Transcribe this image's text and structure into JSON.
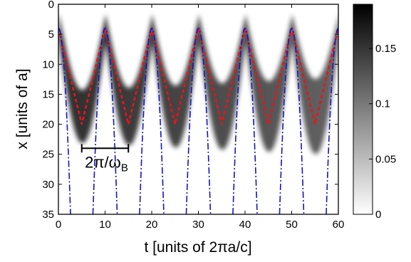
{
  "chart_data": {
    "type": "heatmap",
    "xlabel": "t [units of 2πa/c]",
    "ylabel": "x [units of a]",
    "xlim": [
      0,
      60
    ],
    "ylim": [
      35,
      0
    ],
    "x_ticks": [
      "0",
      "10",
      "20",
      "30",
      "40",
      "50",
      "60"
    ],
    "y_ticks": [
      "0",
      "5",
      "10",
      "15",
      "20",
      "25",
      "30",
      "35"
    ],
    "colorbar": {
      "range": [
        0,
        0.19
      ],
      "ticks": [
        "0",
        "0.05",
        "0.1",
        "0.15"
      ],
      "colormap": "white-to-black"
    },
    "bloch_period": 10,
    "annotation": {
      "label_main": "2π/ω",
      "label_sub": "B",
      "t_start": 5,
      "t_end": 15,
      "x": 24
    },
    "series": [
      {
        "style": "dashed",
        "color": "#e8141c",
        "t_peaks": [
          0,
          10,
          20,
          30,
          40,
          50,
          60
        ],
        "x_top": 4,
        "t_troughs": [
          5,
          15,
          25,
          35,
          45,
          55
        ],
        "x_bottom": 20
      },
      {
        "style": "dash-dot",
        "color": "#1414c8",
        "t_peaks": [
          0,
          10,
          20,
          30,
          40,
          50,
          60
        ],
        "x_top": 4,
        "x_at_35": [
          2.6,
          7.4,
          12.6,
          17.4,
          22.6,
          27.4,
          32.6,
          37.4,
          42.6,
          47.4,
          52.6,
          57.4
        ]
      }
    ]
  }
}
